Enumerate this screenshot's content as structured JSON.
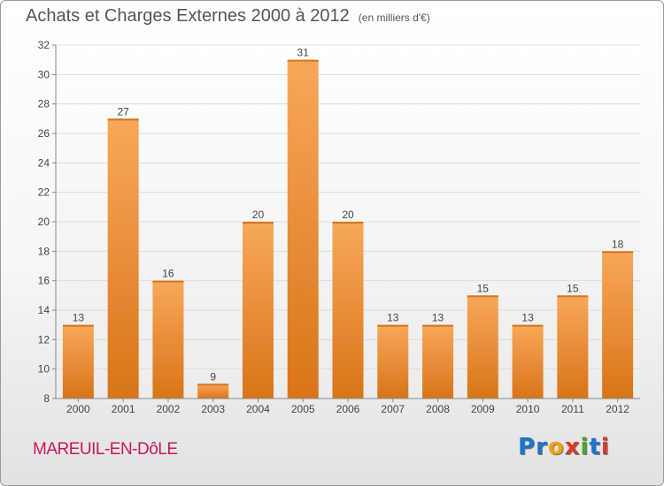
{
  "title": "Achats et Charges Externes 2000 à 2012",
  "unit_note": "(en milliers d'€)",
  "commune": "MAREUIL-EN-DôLE",
  "brand": {
    "letters": [
      {
        "ch": "P",
        "color": "#1d74c9"
      },
      {
        "ch": "r",
        "color": "#1d74c9"
      },
      {
        "ch": "o",
        "color": "#f5a200"
      },
      {
        "ch": "x",
        "color": "#d63a2a"
      },
      {
        "ch": "i",
        "color": "#4ca22b"
      },
      {
        "ch": "t",
        "color": "#1d74c9"
      },
      {
        "ch": "i",
        "color": "#d63a2a"
      }
    ]
  },
  "chart_data": {
    "type": "bar",
    "title": "Achats et Charges Externes 2000 à 2012",
    "subtitle": "(en milliers d'€)",
    "categories": [
      "2000",
      "2001",
      "2002",
      "2003",
      "2004",
      "2005",
      "2006",
      "2007",
      "2008",
      "2009",
      "2010",
      "2011",
      "2012"
    ],
    "values": [
      13,
      27,
      16,
      9,
      20,
      31,
      20,
      13,
      13,
      15,
      13,
      15,
      18
    ],
    "ylim": [
      8,
      32
    ],
    "yticks": [
      8,
      10,
      12,
      14,
      16,
      18,
      20,
      22,
      24,
      26,
      28,
      30,
      32
    ],
    "grid": true,
    "bar_color_light": "#f7a85a",
    "bar_color_dark": "#d97418",
    "data_labels": true
  }
}
